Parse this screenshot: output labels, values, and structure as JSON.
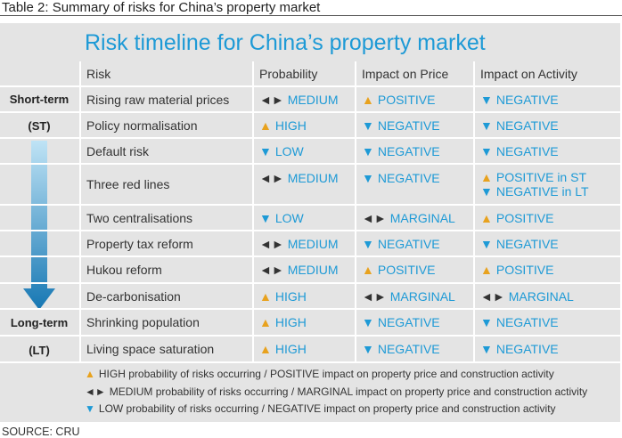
{
  "caption": "Table 2: Summary of risks for China’s property market",
  "panel": {
    "title": "Risk timeline for China’s property market",
    "timeline": {
      "start": "Short-term",
      "start_abbr": "(ST)",
      "end": "Long-term",
      "end_abbr": "(LT)"
    },
    "table": {
      "columns": [
        "Risk",
        "Probability",
        "Impact on Price",
        "Impact on Activity"
      ],
      "rows": [
        {
          "risk": "Rising raw material prices",
          "cells": [
            [
              {
                "icon": "◄►",
                "icon_color": "#333333",
                "text": "MEDIUM"
              }
            ],
            [
              {
                "icon": "▲",
                "icon_color": "#e8a21e",
                "text": "POSITIVE"
              }
            ],
            [
              {
                "icon": "▼",
                "icon_color": "#1e9ad6",
                "text": "NEGATIVE"
              }
            ]
          ]
        },
        {
          "risk": "Policy normalisation",
          "cells": [
            [
              {
                "icon": "▲",
                "icon_color": "#e8a21e",
                "text": "HIGH"
              }
            ],
            [
              {
                "icon": "▼",
                "icon_color": "#1e9ad6",
                "text": "NEGATIVE"
              }
            ],
            [
              {
                "icon": "▼",
                "icon_color": "#1e9ad6",
                "text": "NEGATIVE"
              }
            ]
          ]
        },
        {
          "risk": "Default risk",
          "cells": [
            [
              {
                "icon": "▼",
                "icon_color": "#1e9ad6",
                "text": "LOW"
              }
            ],
            [
              {
                "icon": "▼",
                "icon_color": "#1e9ad6",
                "text": "NEGATIVE"
              }
            ],
            [
              {
                "icon": "▼",
                "icon_color": "#1e9ad6",
                "text": "NEGATIVE"
              }
            ]
          ]
        },
        {
          "risk": "Three red lines",
          "cells": [
            [
              {
                "icon": "◄►",
                "icon_color": "#333333",
                "text": "MEDIUM"
              }
            ],
            [
              {
                "icon": "▼",
                "icon_color": "#1e9ad6",
                "text": "NEGATIVE"
              }
            ],
            [
              {
                "icon": "▲",
                "icon_color": "#e8a21e",
                "text": "POSITIVE in ST"
              },
              {
                "icon": "▼",
                "icon_color": "#1e9ad6",
                "text": "NEGATIVE in LT"
              }
            ]
          ]
        },
        {
          "risk": "Two centralisations",
          "cells": [
            [
              {
                "icon": "▼",
                "icon_color": "#1e9ad6",
                "text": "LOW"
              }
            ],
            [
              {
                "icon": "◄►",
                "icon_color": "#333333",
                "text": "MARGINAL"
              }
            ],
            [
              {
                "icon": "▲",
                "icon_color": "#e8a21e",
                "text": "POSITIVE"
              }
            ]
          ]
        },
        {
          "risk": "Property tax reform",
          "cells": [
            [
              {
                "icon": "◄►",
                "icon_color": "#333333",
                "text": "MEDIUM"
              }
            ],
            [
              {
                "icon": "▼",
                "icon_color": "#1e9ad6",
                "text": "NEGATIVE"
              }
            ],
            [
              {
                "icon": "▼",
                "icon_color": "#1e9ad6",
                "text": "NEGATIVE"
              }
            ]
          ]
        },
        {
          "risk": "Hukou reform",
          "cells": [
            [
              {
                "icon": "◄►",
                "icon_color": "#333333",
                "text": "MEDIUM"
              }
            ],
            [
              {
                "icon": "▲",
                "icon_color": "#e8a21e",
                "text": "POSITIVE"
              }
            ],
            [
              {
                "icon": "▲",
                "icon_color": "#e8a21e",
                "text": "POSITIVE"
              }
            ]
          ]
        },
        {
          "risk": "De-carbonisation",
          "cells": [
            [
              {
                "icon": "▲",
                "icon_color": "#e8a21e",
                "text": "HIGH"
              }
            ],
            [
              {
                "icon": "◄►",
                "icon_color": "#333333",
                "text": "MARGINAL"
              }
            ],
            [
              {
                "icon": "◄►",
                "icon_color": "#333333",
                "text": "MARGINAL"
              }
            ]
          ]
        },
        {
          "risk": "Shrinking population",
          "cells": [
            [
              {
                "icon": "▲",
                "icon_color": "#e8a21e",
                "text": "HIGH"
              }
            ],
            [
              {
                "icon": "▼",
                "icon_color": "#1e9ad6",
                "text": "NEGATIVE"
              }
            ],
            [
              {
                "icon": "▼",
                "icon_color": "#1e9ad6",
                "text": "NEGATIVE"
              }
            ]
          ]
        },
        {
          "risk": "Living space saturation",
          "cells": [
            [
              {
                "icon": "▲",
                "icon_color": "#e8a21e",
                "text": "HIGH"
              }
            ],
            [
              {
                "icon": "▼",
                "icon_color": "#1e9ad6",
                "text": "NEGATIVE"
              }
            ],
            [
              {
                "icon": "▼",
                "icon_color": "#1e9ad6",
                "text": "NEGATIVE"
              }
            ]
          ]
        }
      ]
    },
    "legend": [
      {
        "icon": "▲",
        "icon_color": "#e8a21e",
        "text": "HIGH probability of risks occurring / POSITIVE impact on property price and construction activity"
      },
      {
        "icon": "◄►",
        "icon_color": "#333333",
        "text": "MEDIUM probability of risks occurring / MARGINAL impact on property price and construction activity"
      },
      {
        "icon": "▼",
        "icon_color": "#1e9ad6",
        "text": "LOW probability of risks occurring / NEGATIVE impact on property price and construction activity"
      }
    ]
  },
  "source": "SOURCE: CRU"
}
